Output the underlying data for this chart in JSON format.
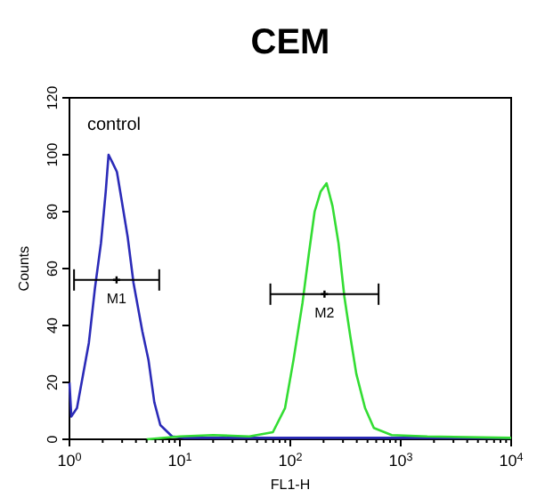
{
  "chart_data": {
    "type": "line",
    "title": "CEM",
    "xlabel": "FL1-H",
    "ylabel": "Counts",
    "log": "x",
    "xlim": [
      1,
      10000
    ],
    "ylim": [
      0,
      120
    ],
    "xticks": [
      {
        "value": 1,
        "label": "10$^{0}$"
      },
      {
        "value": 2,
        "label": null
      },
      {
        "value": 3,
        "label": null
      },
      {
        "value": 4,
        "label": null
      },
      {
        "value": 5,
        "label": null
      },
      {
        "value": 6,
        "label": null
      },
      {
        "value": 7,
        "label": null
      },
      {
        "value": 8,
        "label": null
      },
      {
        "value": 9,
        "label": null
      },
      {
        "value": 10,
        "label": "10$^{1}$"
      },
      {
        "value": 20,
        "label": null
      },
      {
        "value": 30,
        "label": null
      },
      {
        "value": 40,
        "label": null
      },
      {
        "value": 50,
        "label": null
      },
      {
        "value": 60,
        "label": null
      },
      {
        "value": 70,
        "label": null
      },
      {
        "value": 80,
        "label": null
      },
      {
        "value": 90,
        "label": null
      },
      {
        "value": 100,
        "label": "10$^{2}$"
      },
      {
        "value": 200,
        "label": null
      },
      {
        "value": 300,
        "label": null
      },
      {
        "value": 400,
        "label": null
      },
      {
        "value": 500,
        "label": null
      },
      {
        "value": 600,
        "label": null
      },
      {
        "value": 700,
        "label": null
      },
      {
        "value": 800,
        "label": null
      },
      {
        "value": 900,
        "label": null
      },
      {
        "value": 1000,
        "label": "10$^{3}$"
      },
      {
        "value": 2000,
        "label": null
      },
      {
        "value": 3000,
        "label": null
      },
      {
        "value": 4000,
        "label": null
      },
      {
        "value": 5000,
        "label": null
      },
      {
        "value": 6000,
        "label": null
      },
      {
        "value": 7000,
        "label": null
      },
      {
        "value": 8000,
        "label": null
      },
      {
        "value": 9000,
        "label": null
      },
      {
        "value": 10000,
        "label": "10$^{4}$"
      }
    ],
    "yticks": [
      0,
      20,
      40,
      60,
      80,
      100,
      120
    ],
    "grid": false,
    "marker": "none",
    "line_style": "solid",
    "series": [
      {
        "color": "#2b2bb8",
        "x": [
          1,
          1.04,
          1.17,
          1.5,
          1.7,
          1.93,
          2.13,
          2.26,
          2.47,
          2.69,
          2.97,
          3.37,
          3.8,
          4.57,
          5.19,
          5.87,
          6.65,
          8.5,
          11,
          20,
          50,
          100,
          300,
          1000,
          3000,
          10000
        ],
        "values": [
          20,
          8,
          11,
          34,
          53,
          69,
          87,
          100,
          97,
          94,
          84,
          71,
          55,
          38,
          28,
          13,
          5,
          1,
          0.5,
          0.5,
          0.5,
          0.5,
          0.5,
          0.5,
          0.5,
          0.5
        ]
      },
      {
        "color": "#33dd33",
        "x": [
          5,
          10,
          20,
          42.6,
          69.5,
          89.6,
          107,
          129,
          147,
          166,
          188,
          213,
          241,
          273,
          309,
          350,
          396,
          475,
          571,
          828,
          1740,
          10000
        ],
        "values": [
          0,
          1,
          1.5,
          1,
          2.5,
          11,
          28,
          48,
          65,
          80,
          87,
          90,
          82,
          69,
          50,
          36,
          23,
          11,
          4,
          1.5,
          1,
          0.5
        ]
      },
      {
        "type": "scatter",
        "name": "M1",
        "color": "#000000",
        "marker": "cross",
        "x": [
          2.67
        ],
        "values": [
          56
        ],
        "xerrors": [
          [
            1.1,
            6.5
          ]
        ]
      },
      {
        "type": "scatter",
        "name": "M2",
        "color": "#000000",
        "marker": "cross",
        "x": [
          204
        ],
        "values": [
          51
        ],
        "xerrors": [
          [
            66,
            630
          ]
        ]
      }
    ],
    "annotations": [
      "control"
    ]
  }
}
